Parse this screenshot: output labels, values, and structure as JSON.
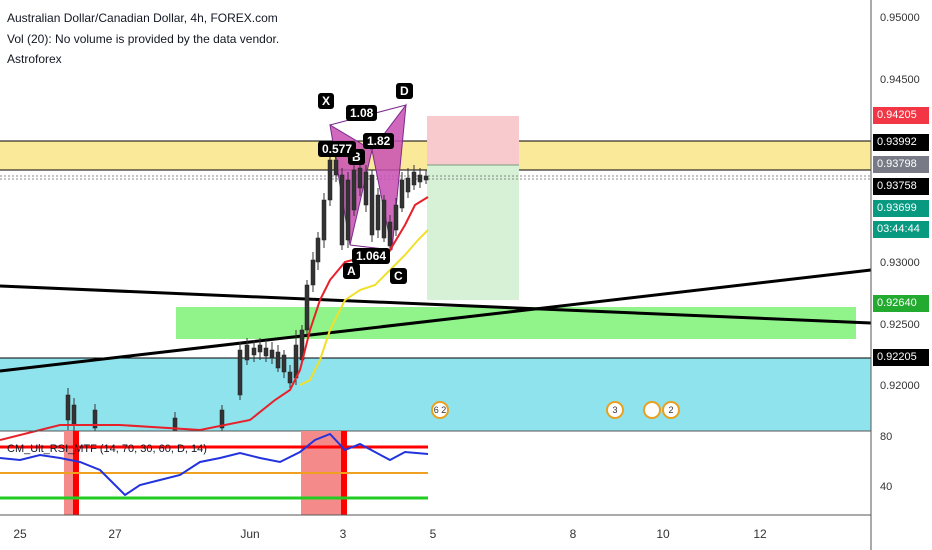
{
  "header": {
    "symbol_line": "Australian Dollar/Canadian Dollar, 4h, FOREX.com",
    "volume_line": "Vol (20): No volume is provided by the data vendor.",
    "indicator_name": "Astroforex"
  },
  "rsi_indicator_label": "CM_Ult_RSI_MTF (14, 70, 30, 60, D, 14)",
  "price_axis": {
    "ticks": [
      "0.95000",
      "0.94500",
      "0.93000",
      "0.92500",
      "0.92000"
    ],
    "badges": [
      {
        "text": "0.94205",
        "color": "#f23645"
      },
      {
        "text": "0.93992",
        "color": "#000000"
      },
      {
        "text": "0.93798",
        "color": "#787b86"
      },
      {
        "text": "0.93758",
        "color": "#000000"
      },
      {
        "text": "0.93699",
        "color": "#089981"
      },
      {
        "text": "03:44:44",
        "color": "#089981"
      },
      {
        "text": "0.92640",
        "color": "#22ab2f"
      },
      {
        "text": "0.92205",
        "color": "#000000"
      }
    ]
  },
  "rsi_axis": {
    "ticks": [
      "80",
      "40"
    ]
  },
  "time_axis": {
    "labels": [
      "25",
      "27",
      "Jun",
      "3",
      "5",
      "8",
      "10",
      "12"
    ]
  },
  "pattern_labels": {
    "x": "X",
    "a": "A",
    "b": "B",
    "c": "C",
    "d": "D"
  },
  "ratio_labels": {
    "r1": "1.08",
    "r2": "0.577",
    "r3": "1.82",
    "r4": "1.064"
  },
  "events": [
    "6 2",
    "3",
    "2"
  ],
  "colors": {
    "yellow_zone": "#fbe99a",
    "cyan_zone": "#8fe3ec",
    "green_zone": "#90f48a",
    "pattern_fill": "#c84fb3",
    "stop_zone": "#f8c9cd",
    "target_zone": "#d6f1d6"
  }
}
